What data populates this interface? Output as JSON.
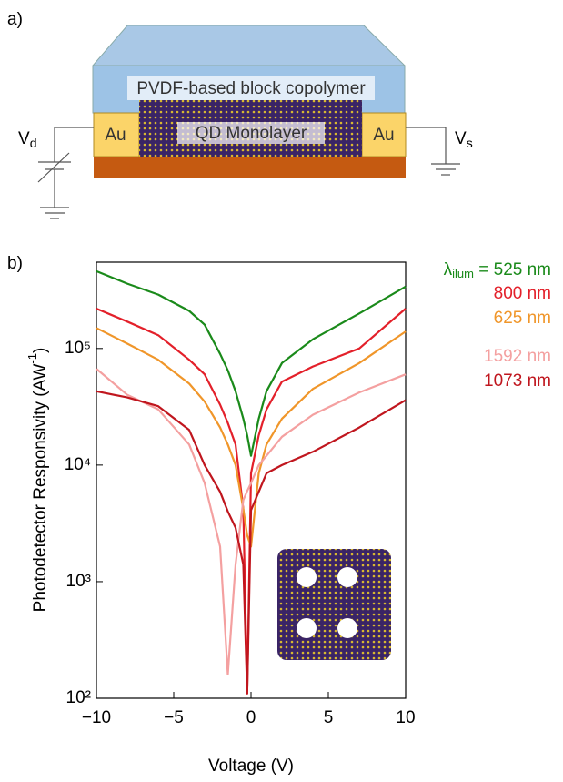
{
  "diagram": {
    "panel_label": "a)",
    "layer_label": "PVDF-based block copolymer",
    "left_electrode": "Au",
    "channel_label": "QD Monolayer",
    "right_electrode": "Au",
    "drain": {
      "main": "V",
      "sub": "d"
    },
    "source": {
      "main": "V",
      "sub": "s"
    }
  },
  "chart_data": {
    "type": "line",
    "panel_label": "b)",
    "y_label": {
      "main": "Photodetector Responsivity (AW",
      "sup": "-1",
      "end": ")"
    },
    "x_label": "Voltage (V)",
    "legend_title": {
      "main": "λ",
      "sub": "ilum",
      "end": " ="
    },
    "legend": "right",
    "log_y": true,
    "xlim": [
      -10,
      10
    ],
    "xticks": [
      {
        "value": -10,
        "label": "−10"
      },
      {
        "value": -5,
        "label": "−5"
      },
      0,
      5,
      10
    ],
    "ylim": [
      100,
      550000
    ],
    "yticks": [
      {
        "value": 100,
        "label": "10²"
      },
      {
        "value": 1000,
        "label": "10³"
      },
      {
        "value": 10000,
        "label": "10⁴"
      },
      {
        "value": 100000,
        "label": "10⁵"
      }
    ],
    "x": [
      -10,
      -8,
      -6,
      -4,
      -3,
      -2,
      -1.5,
      -1,
      -0.5,
      -0.25,
      0,
      0.5,
      1,
      2,
      4,
      7,
      10
    ],
    "series": [
      {
        "name": "525 nm",
        "color": "#1a8a1a",
        "values": [
          460000,
          360000,
          290000,
          210000,
          160000,
          90000,
          65000,
          43000,
          25000,
          18000,
          12000,
          25000,
          43000,
          75000,
          120000,
          200000,
          340000
        ]
      },
      {
        "name": "800 nm",
        "color": "#e3202a",
        "values": [
          220000,
          170000,
          130000,
          80000,
          60000,
          33000,
          23000,
          15000,
          4200,
          110,
          8500,
          18000,
          30000,
          52000,
          70000,
          100000,
          220000
        ]
      },
      {
        "name": "625 nm",
        "color": "#f0962a",
        "values": [
          150000,
          110000,
          80000,
          50000,
          35000,
          21000,
          15000,
          10000,
          4200,
          2500,
          2000,
          8500,
          15000,
          25000,
          45000,
          75000,
          140000
        ]
      },
      {
        "name": "1592 nm",
        "color": "#f4a0a0",
        "values": [
          67000,
          40000,
          30000,
          15000,
          7000,
          2000,
          160,
          1400,
          5000,
          6000,
          7000,
          10000,
          12000,
          17500,
          27000,
          42000,
          60000
        ]
      },
      {
        "name": "1073 nm",
        "color": "#c0161e",
        "values": [
          43000,
          38000,
          32000,
          20000,
          10000,
          5900,
          4000,
          2900,
          1400,
          110,
          4100,
          5900,
          8500,
          10000,
          13000,
          21000,
          36000
        ]
      }
    ]
  }
}
